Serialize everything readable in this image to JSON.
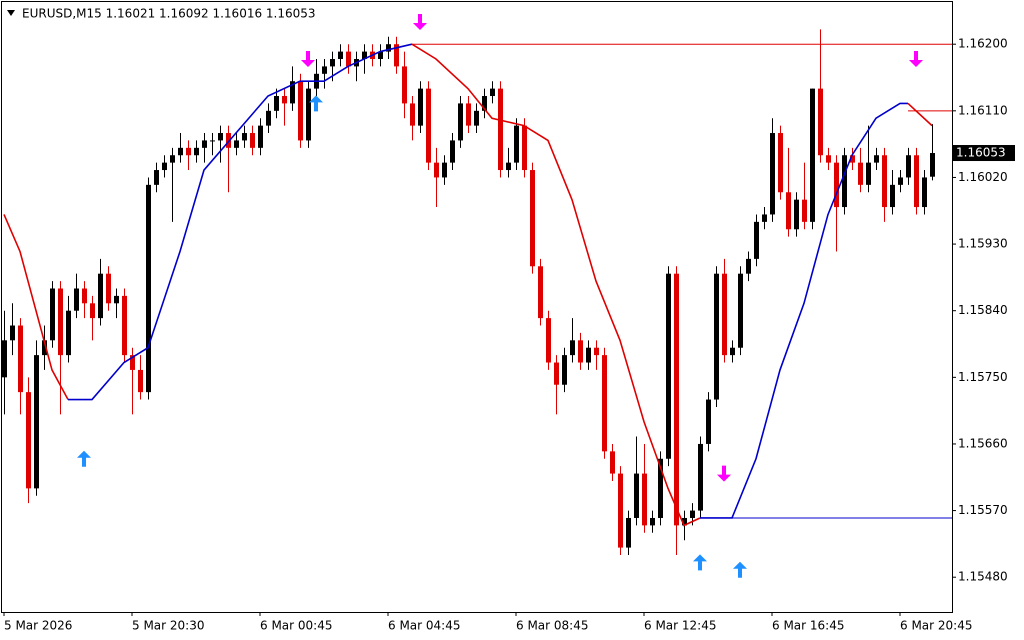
{
  "chart_data": {
    "type": "candlestick",
    "title": "EURUSD,M15  1.16021 1.16092 1.16016 1.16053",
    "ylim": [
      1.15433,
      1.16257
    ],
    "yticks": [
      {
        "value": 1.162,
        "label": "1.16200"
      },
      {
        "value": 1.1611,
        "label": "1.16110"
      },
      {
        "value": 1.1602,
        "label": "1.16020"
      },
      {
        "value": 1.1593,
        "label": "1.15930"
      },
      {
        "value": 1.1584,
        "label": "1.15840"
      },
      {
        "value": 1.1575,
        "label": "1.15750"
      },
      {
        "value": 1.1566,
        "label": "1.15660"
      },
      {
        "value": 1.1557,
        "label": "1.15570"
      },
      {
        "value": 1.1548,
        "label": "1.15480"
      }
    ],
    "xticks": [
      {
        "value": 0,
        "label": "5 Mar 2026"
      },
      {
        "value": 16,
        "label": "5 Mar 20:30"
      },
      {
        "value": 32,
        "label": "6 Mar 00:45"
      },
      {
        "value": 48,
        "label": "6 Mar 04:45"
      },
      {
        "value": 64,
        "label": "6 Mar 08:45"
      },
      {
        "value": 80,
        "label": "6 Mar 12:45"
      },
      {
        "value": 96,
        "label": "6 Mar 16:45"
      },
      {
        "value": 112,
        "label": "6 Mar 20:45"
      }
    ],
    "grid": false,
    "bull_color": "#000000",
    "bear_color": "#e00000",
    "ohlc": [
      [
        1.1575,
        1.1584,
        1.157,
        1.158
      ],
      [
        1.158,
        1.1585,
        1.1578,
        1.1582
      ],
      [
        1.1582,
        1.1583,
        1.157,
        1.1573
      ],
      [
        1.1573,
        1.1575,
        1.1558,
        1.156
      ],
      [
        1.156,
        1.158,
        1.1559,
        1.1578
      ],
      [
        1.1578,
        1.1582,
        1.1576,
        1.158
      ],
      [
        1.158,
        1.1588,
        1.1579,
        1.1587
      ],
      [
        1.1587,
        1.1588,
        1.157,
        1.1578
      ],
      [
        1.1578,
        1.1586,
        1.1577,
        1.1584
      ],
      [
        1.1584,
        1.1589,
        1.1583,
        1.1587
      ],
      [
        1.1587,
        1.1588,
        1.1583,
        1.1585
      ],
      [
        1.1585,
        1.1586,
        1.158,
        1.1583
      ],
      [
        1.1583,
        1.1591,
        1.1582,
        1.1589
      ],
      [
        1.1589,
        1.159,
        1.1584,
        1.1585
      ],
      [
        1.1585,
        1.1587,
        1.1583,
        1.1586
      ],
      [
        1.1586,
        1.1587,
        1.1577,
        1.1578
      ],
      [
        1.1578,
        1.1579,
        1.157,
        1.1576
      ],
      [
        1.1576,
        1.1578,
        1.1572,
        1.1573
      ],
      [
        1.1573,
        1.1602,
        1.1572,
        1.1601
      ],
      [
        1.1601,
        1.1604,
        1.16,
        1.1603
      ],
      [
        1.1603,
        1.1605,
        1.1602,
        1.1604
      ],
      [
        1.1604,
        1.1606,
        1.1596,
        1.1605
      ],
      [
        1.1605,
        1.1608,
        1.1604,
        1.1606
      ],
      [
        1.1606,
        1.1607,
        1.1603,
        1.1605
      ],
      [
        1.1605,
        1.1607,
        1.1604,
        1.1606
      ],
      [
        1.1606,
        1.1608,
        1.1604,
        1.1607
      ],
      [
        1.1607,
        1.1608,
        1.1605,
        1.1607
      ],
      [
        1.1607,
        1.1609,
        1.1604,
        1.1608
      ],
      [
        1.1608,
        1.1609,
        1.16,
        1.1606
      ],
      [
        1.1606,
        1.1608,
        1.1605,
        1.1607
      ],
      [
        1.1607,
        1.1609,
        1.1606,
        1.1608
      ],
      [
        1.1608,
        1.1609,
        1.1605,
        1.1606
      ],
      [
        1.1606,
        1.161,
        1.1605,
        1.1609
      ],
      [
        1.1609,
        1.1612,
        1.1608,
        1.1611
      ],
      [
        1.1611,
        1.1614,
        1.161,
        1.1613
      ],
      [
        1.1613,
        1.1614,
        1.1609,
        1.1612
      ],
      [
        1.1612,
        1.1617,
        1.1611,
        1.1615
      ],
      [
        1.1615,
        1.1616,
        1.1606,
        1.1607
      ],
      [
        1.1607,
        1.1615,
        1.1606,
        1.1614
      ],
      [
        1.1614,
        1.1618,
        1.1613,
        1.1616
      ],
      [
        1.1616,
        1.1618,
        1.1614,
        1.1617
      ],
      [
        1.1617,
        1.1619,
        1.1615,
        1.1618
      ],
      [
        1.1618,
        1.162,
        1.1617,
        1.1619
      ],
      [
        1.1619,
        1.162,
        1.1616,
        1.1617
      ],
      [
        1.1617,
        1.1619,
        1.1615,
        1.1618
      ],
      [
        1.1618,
        1.162,
        1.1616,
        1.1619
      ],
      [
        1.1619,
        1.162,
        1.1617,
        1.1618
      ],
      [
        1.1618,
        1.162,
        1.1617,
        1.1619
      ],
      [
        1.1619,
        1.1621,
        1.1618,
        1.162
      ],
      [
        1.162,
        1.1621,
        1.1616,
        1.1617
      ],
      [
        1.1617,
        1.1619,
        1.161,
        1.1612
      ],
      [
        1.1612,
        1.1613,
        1.1607,
        1.1609
      ],
      [
        1.1609,
        1.1615,
        1.1608,
        1.1614
      ],
      [
        1.1614,
        1.1615,
        1.1603,
        1.1604
      ],
      [
        1.1604,
        1.1606,
        1.1598,
        1.1602
      ],
      [
        1.1602,
        1.1605,
        1.1601,
        1.1604
      ],
      [
        1.1604,
        1.1608,
        1.1603,
        1.1607
      ],
      [
        1.1607,
        1.1613,
        1.1606,
        1.1612
      ],
      [
        1.1612,
        1.1613,
        1.1608,
        1.1609
      ],
      [
        1.1609,
        1.1612,
        1.1608,
        1.1611
      ],
      [
        1.1611,
        1.1614,
        1.161,
        1.1613
      ],
      [
        1.1613,
        1.1615,
        1.1612,
        1.1614
      ],
      [
        1.1614,
        1.1615,
        1.1602,
        1.1603
      ],
      [
        1.1603,
        1.1606,
        1.1602,
        1.1604
      ],
      [
        1.1604,
        1.161,
        1.1603,
        1.1609
      ],
      [
        1.1609,
        1.161,
        1.1602,
        1.1603
      ],
      [
        1.1603,
        1.1604,
        1.1589,
        1.159
      ],
      [
        1.159,
        1.1591,
        1.1582,
        1.1583
      ],
      [
        1.1583,
        1.1584,
        1.1576,
        1.1577
      ],
      [
        1.1577,
        1.1578,
        1.157,
        1.1574
      ],
      [
        1.1574,
        1.1579,
        1.1573,
        1.1578
      ],
      [
        1.1578,
        1.1583,
        1.1577,
        1.158
      ],
      [
        1.158,
        1.1581,
        1.1576,
        1.1577
      ],
      [
        1.1577,
        1.158,
        1.1576,
        1.1579
      ],
      [
        1.1579,
        1.158,
        1.1576,
        1.1578
      ],
      [
        1.1578,
        1.1579,
        1.1564,
        1.1565
      ],
      [
        1.1565,
        1.1566,
        1.1561,
        1.1562
      ],
      [
        1.1562,
        1.1563,
        1.1551,
        1.1552
      ],
      [
        1.1552,
        1.1557,
        1.1551,
        1.1556
      ],
      [
        1.1556,
        1.1567,
        1.1555,
        1.1562
      ],
      [
        1.1562,
        1.1566,
        1.1554,
        1.1555
      ],
      [
        1.1555,
        1.1557,
        1.1554,
        1.1556
      ],
      [
        1.1556,
        1.1565,
        1.1555,
        1.1564
      ],
      [
        1.1564,
        1.159,
        1.1563,
        1.1589
      ],
      [
        1.1589,
        1.159,
        1.1551,
        1.1555
      ],
      [
        1.1555,
        1.1557,
        1.1553,
        1.1556
      ],
      [
        1.1556,
        1.1558,
        1.1555,
        1.1557
      ],
      [
        1.1557,
        1.1567,
        1.1556,
        1.1566
      ],
      [
        1.1566,
        1.1573,
        1.1565,
        1.1572
      ],
      [
        1.1572,
        1.159,
        1.1571,
        1.1589
      ],
      [
        1.1589,
        1.1591,
        1.1577,
        1.1578
      ],
      [
        1.1578,
        1.158,
        1.1577,
        1.1579
      ],
      [
        1.1579,
        1.159,
        1.1578,
        1.1589
      ],
      [
        1.1589,
        1.1592,
        1.1588,
        1.1591
      ],
      [
        1.1591,
        1.1597,
        1.159,
        1.1596
      ],
      [
        1.1596,
        1.1598,
        1.1595,
        1.1597
      ],
      [
        1.1597,
        1.161,
        1.1596,
        1.1608
      ],
      [
        1.1608,
        1.1609,
        1.1599,
        1.16
      ],
      [
        1.16,
        1.1606,
        1.1594,
        1.1595
      ],
      [
        1.1595,
        1.16,
        1.1594,
        1.1599
      ],
      [
        1.1599,
        1.1604,
        1.1595,
        1.1596
      ],
      [
        1.1596,
        1.1614,
        1.1595,
        1.1614
      ],
      [
        1.1614,
        1.1622,
        1.1604,
        1.1605
      ],
      [
        1.1605,
        1.1606,
        1.1603,
        1.1604
      ],
      [
        1.1604,
        1.1605,
        1.1592,
        1.1598
      ],
      [
        1.1598,
        1.1606,
        1.1597,
        1.1605
      ],
      [
        1.1605,
        1.1606,
        1.1603,
        1.1604
      ],
      [
        1.1604,
        1.1606,
        1.16,
        1.1601
      ],
      [
        1.1601,
        1.1609,
        1.16,
        1.1604
      ],
      [
        1.1604,
        1.1606,
        1.1603,
        1.1605
      ],
      [
        1.1605,
        1.1606,
        1.1596,
        1.1598
      ],
      [
        1.1598,
        1.1603,
        1.1597,
        1.1601
      ],
      [
        1.1601,
        1.1603,
        1.16,
        1.1602
      ],
      [
        1.1602,
        1.1606,
        1.1601,
        1.1605
      ],
      [
        1.1605,
        1.1606,
        1.1597,
        1.1598
      ],
      [
        1.1598,
        1.1603,
        1.1597,
        1.1602
      ],
      [
        1.16021,
        1.16092,
        1.16016,
        1.16053
      ]
    ],
    "ma": [
      {
        "color": "#e00000",
        "x": [
          0,
          2,
          4,
          6,
          8
        ],
        "values": [
          1.1597,
          1.1592,
          1.1584,
          1.1576,
          1.1572
        ]
      },
      {
        "color": "#0000cc",
        "x": [
          8,
          11,
          15,
          18,
          22,
          25,
          29,
          33,
          37,
          40,
          43,
          47,
          51
        ],
        "values": [
          1.1572,
          1.1572,
          1.1577,
          1.1579,
          1.1592,
          1.1603,
          1.1608,
          1.1613,
          1.1615,
          1.1615,
          1.1617,
          1.1619,
          1.162
        ]
      },
      {
        "color": "#e00000",
        "x": [
          51,
          54,
          58,
          61,
          65,
          68,
          71,
          74,
          77,
          80,
          83,
          85,
          87
        ],
        "values": [
          1.162,
          1.1618,
          1.1614,
          1.161,
          1.1609,
          1.1607,
          1.1599,
          1.1588,
          1.158,
          1.1569,
          1.156,
          1.1555,
          1.1556
        ]
      },
      {
        "color": "#0000cc",
        "x": [
          87,
          91,
          94,
          97,
          100,
          103,
          106,
          109,
          112,
          113
        ],
        "values": [
          1.1556,
          1.1556,
          1.1564,
          1.1576,
          1.1585,
          1.1597,
          1.1605,
          1.161,
          1.1612,
          1.1612
        ]
      },
      {
        "color": "#e00000",
        "x": [
          113,
          116
        ],
        "values": [
          1.1612,
          1.1609
        ]
      }
    ],
    "levels": [
      {
        "value": 1.162,
        "from": 51,
        "color": "#e00000"
      },
      {
        "value": 1.1556,
        "from": 91,
        "color": "#0000cc"
      },
      {
        "value": 1.1611,
        "from": 113,
        "color": "#e00000"
      }
    ],
    "arrows_up": {
      "color": "#1e90ff",
      "x": [
        10,
        39,
        87,
        92
      ],
      "values": [
        1.1564,
        1.1612,
        1.155,
        1.1549
      ]
    },
    "arrows_down": {
      "color": "#ff00ff",
      "x": [
        38,
        52,
        90,
        114
      ],
      "values": [
        1.1618,
        1.1623,
        1.1562,
        1.1618
      ]
    },
    "last_price": {
      "value": 1.16053,
      "label": "1.16053"
    }
  }
}
